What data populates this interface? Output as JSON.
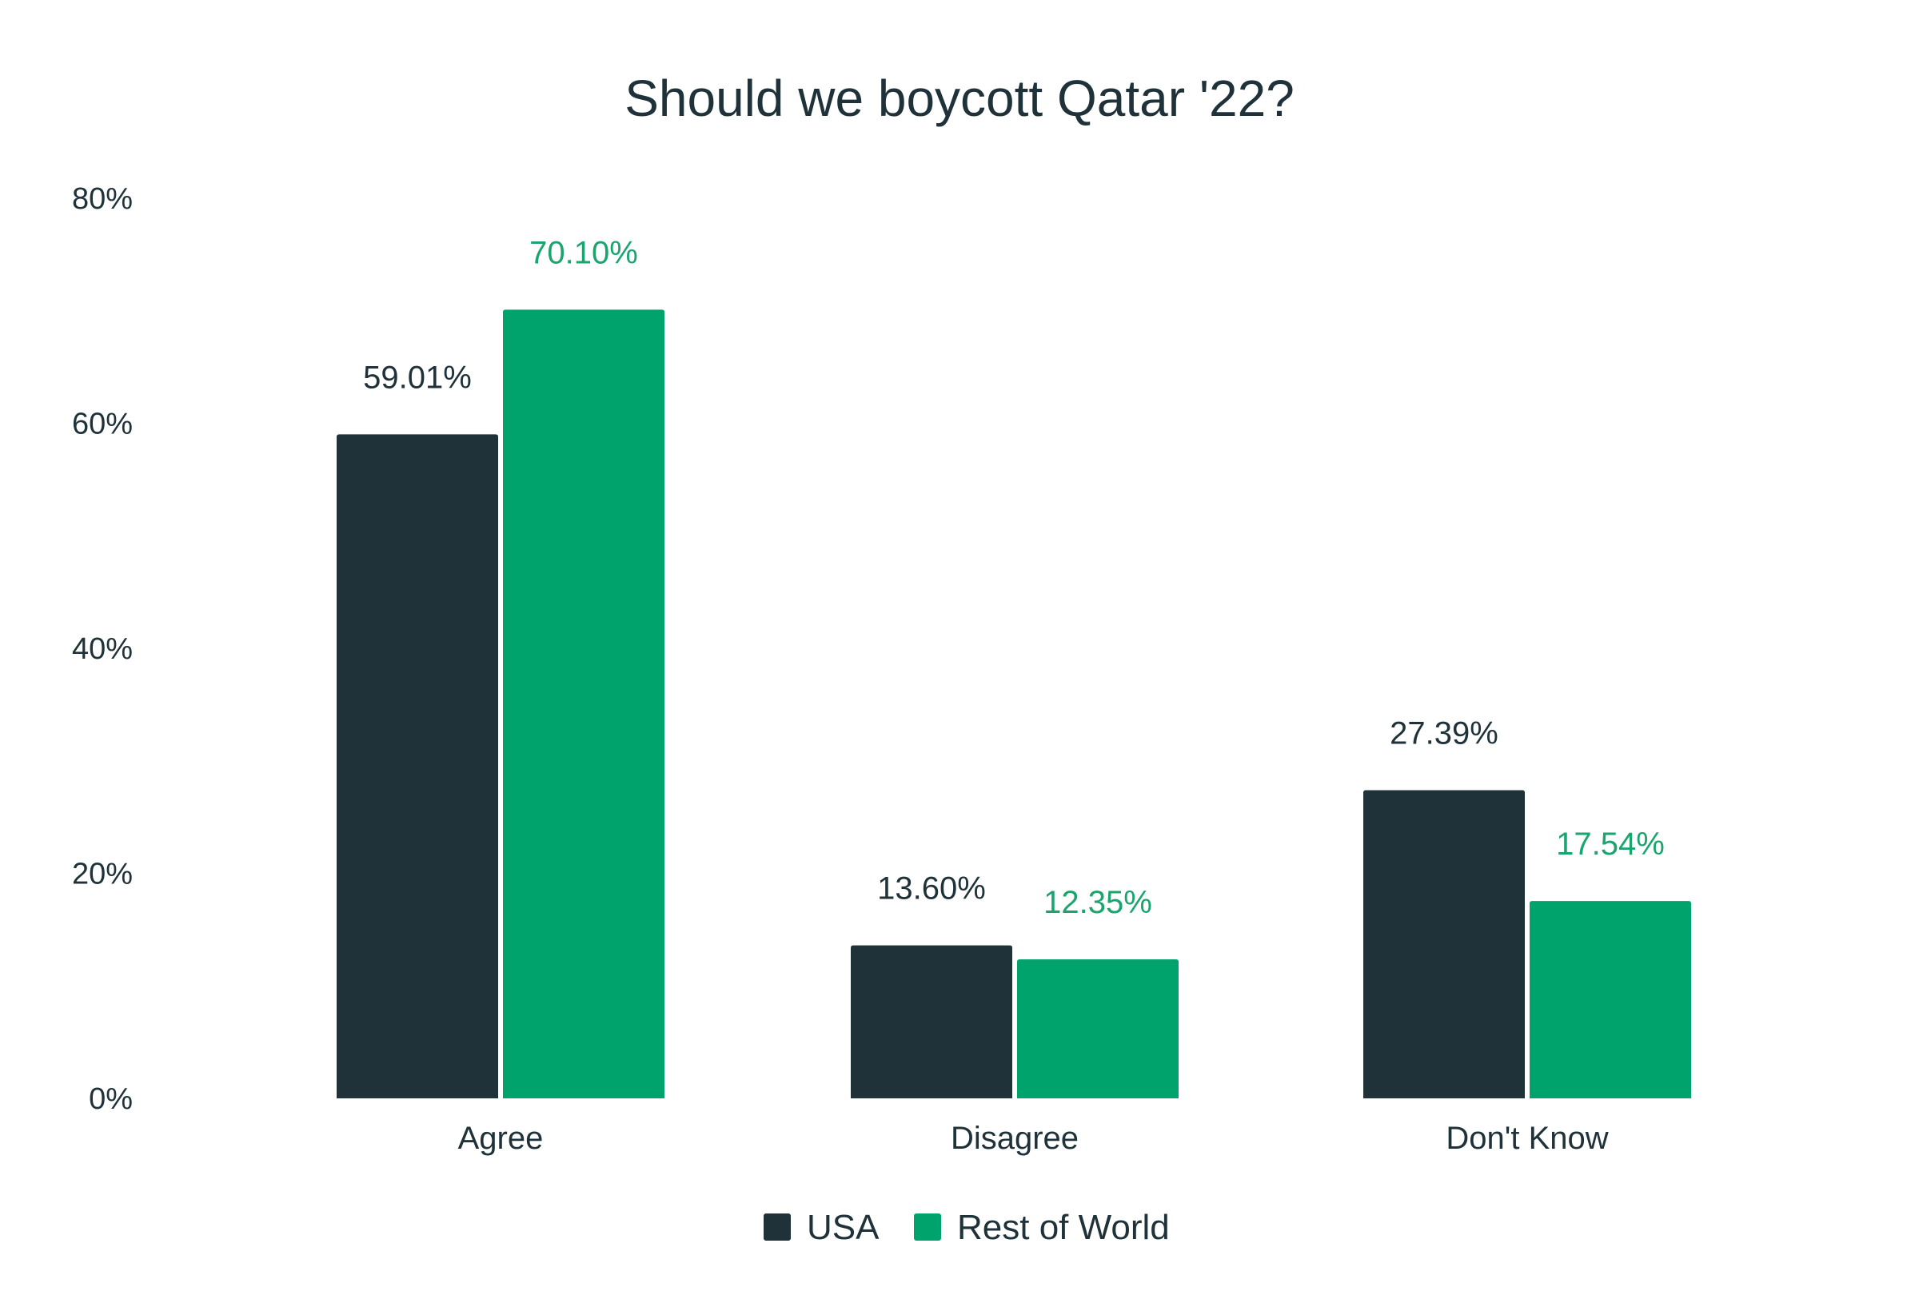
{
  "chart_data": {
    "type": "bar",
    "title": "Should we boycott Qatar '22?",
    "xlabel": "",
    "ylabel": "",
    "categories": [
      "Agree",
      "Disagree",
      "Don't Know"
    ],
    "series": [
      {
        "name": "USA",
        "color": "#1f3239",
        "values": [
          59.01,
          13.6,
          27.39
        ],
        "labels": [
          "59.01%",
          "13.60%",
          "27.39%"
        ]
      },
      {
        "name": "Rest of World",
        "color": "#00a36c",
        "values": [
          70.1,
          12.35,
          17.54
        ],
        "labels": [
          "70.10%",
          "12.35%",
          "17.54%"
        ]
      }
    ],
    "ylim": [
      0,
      80
    ],
    "yticks": [
      0,
      20,
      40,
      60,
      80
    ],
    "ytick_labels": [
      "0%",
      "20%",
      "40%",
      "60%",
      "80%"
    ],
    "grid": false,
    "legend_position": "bottom-center"
  }
}
